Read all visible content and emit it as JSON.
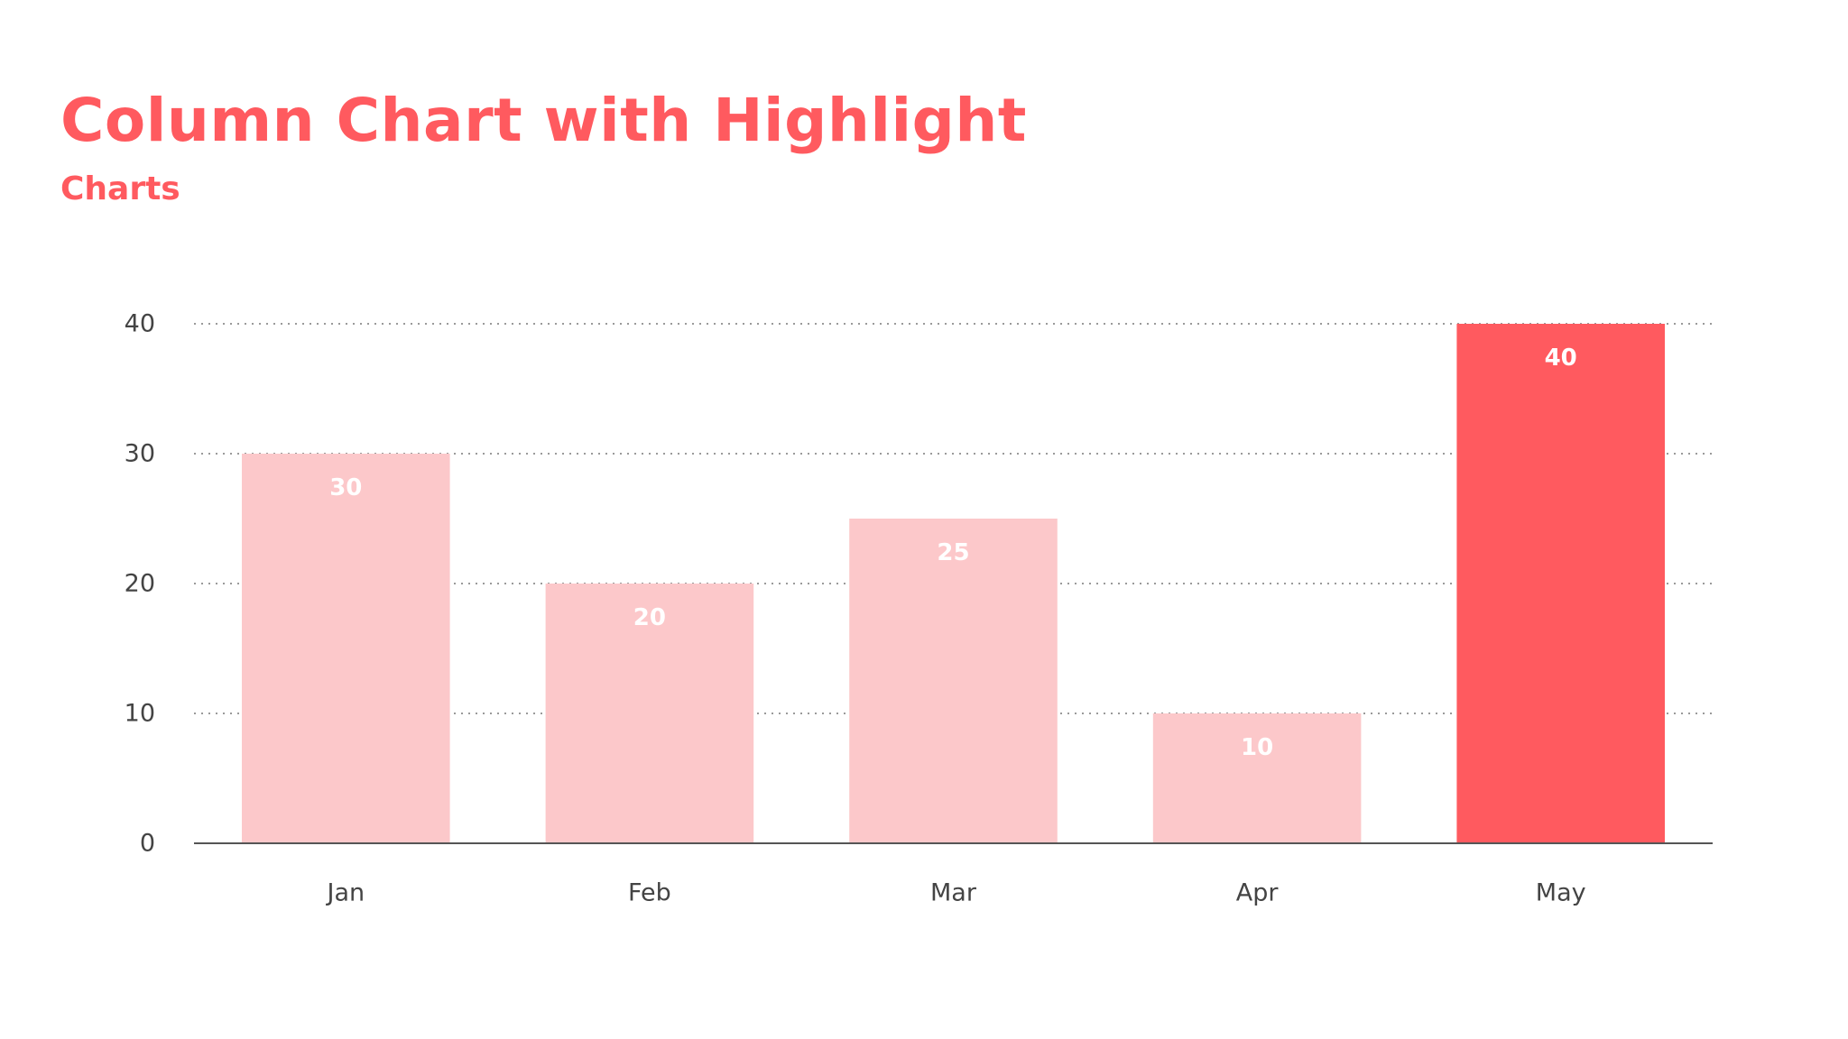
{
  "slide": {
    "title": "Column Chart with Highlight",
    "subtitle": "Charts"
  },
  "colors": {
    "accent": "#FF5A5F",
    "bar": "#FCC8CA",
    "highlight": "#FF5A5F",
    "axis_text": "#444444",
    "grid": "#9A9A9A",
    "baseline": "#555555",
    "data_label": "#FFFFFF"
  },
  "chart_data": {
    "type": "bar",
    "categories": [
      "Jan",
      "Feb",
      "Mar",
      "Apr",
      "May"
    ],
    "values": [
      30,
      20,
      25,
      10,
      40
    ],
    "value_labels": [
      "30",
      "20",
      "25",
      "10",
      "40"
    ],
    "highlight_index": 4,
    "ylim": [
      0,
      40
    ],
    "yticks": [
      0,
      10,
      20,
      30,
      40
    ],
    "ytick_labels": [
      "0",
      "10",
      "20",
      "30",
      "40"
    ],
    "grid": true,
    "grid_style": "dotted",
    "legend": "none"
  }
}
